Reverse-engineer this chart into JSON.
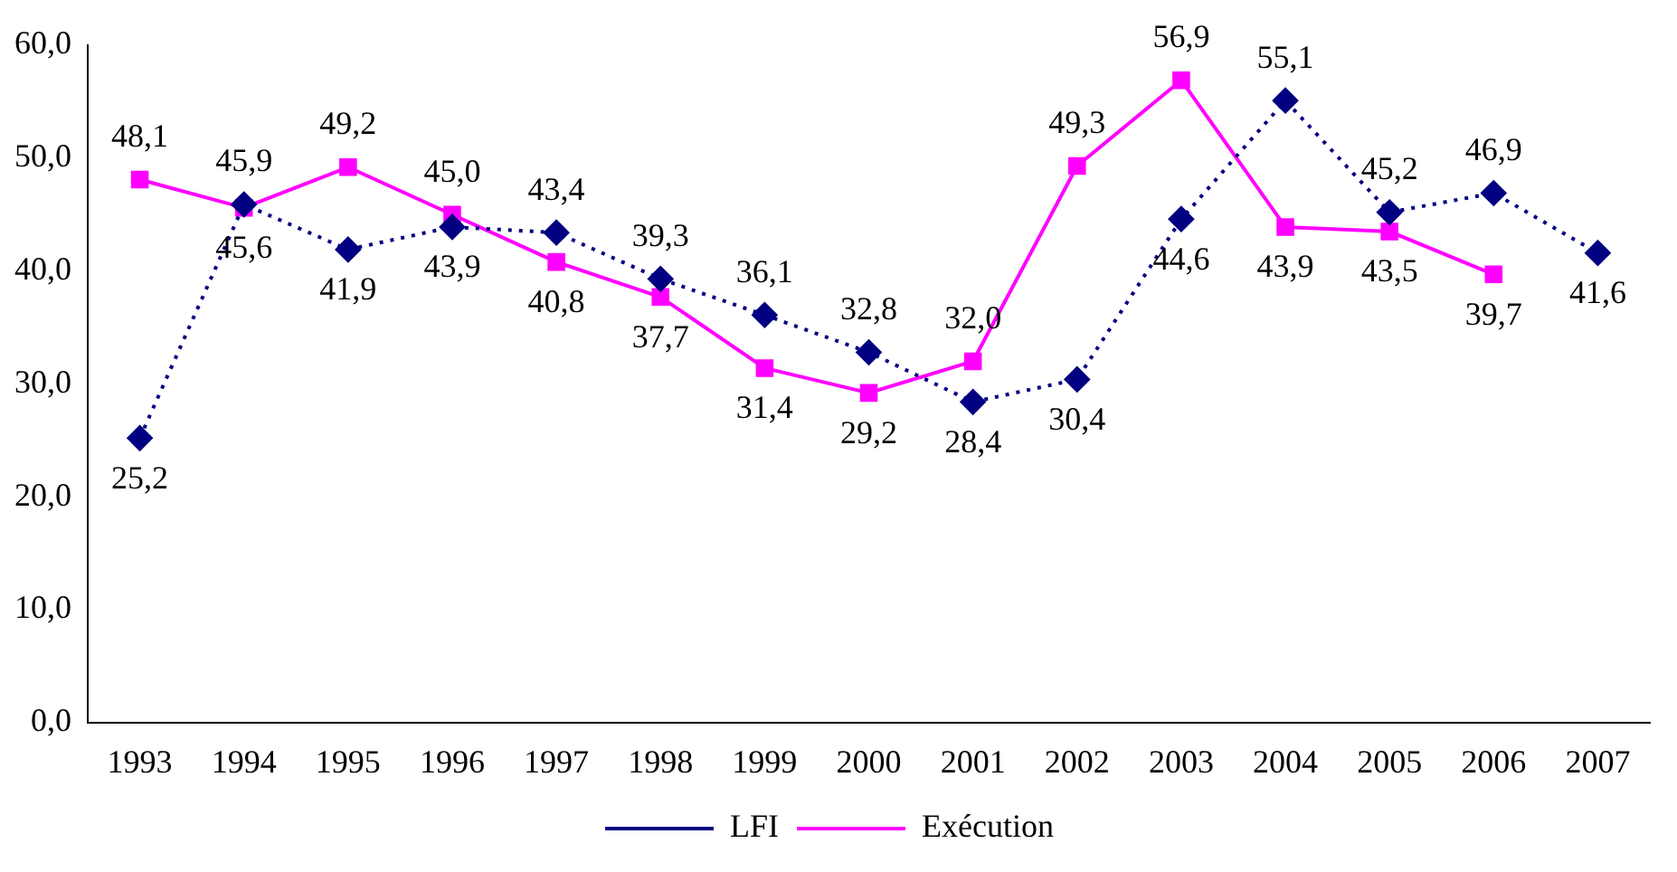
{
  "chart_data": {
    "type": "line",
    "categories": [
      "1993",
      "1994",
      "1995",
      "1996",
      "1997",
      "1998",
      "1999",
      "2000",
      "2001",
      "2002",
      "2003",
      "2004",
      "2005",
      "2006",
      "2007"
    ],
    "ylim": [
      0,
      60
    ],
    "yticks": [
      {
        "value": 0,
        "label": "0,0"
      },
      {
        "value": 10,
        "label": "10,0"
      },
      {
        "value": 20,
        "label": "20,0"
      },
      {
        "value": 30,
        "label": "30,0"
      },
      {
        "value": 40,
        "label": "40,0"
      },
      {
        "value": 50,
        "label": "50,0"
      },
      {
        "value": 60,
        "label": "60,0"
      }
    ],
    "grid": false,
    "legend": "bottom",
    "series": [
      {
        "name": "LFI",
        "color": "#000080",
        "marker": "diamond",
        "line_style": "dotted",
        "values": [
          25.2,
          45.9,
          41.9,
          43.9,
          43.4,
          39.3,
          36.1,
          32.8,
          28.4,
          30.4,
          44.6,
          55.1,
          45.2,
          46.9,
          41.6
        ],
        "value_labels": [
          "25,2",
          "45,9",
          "41,9",
          "43,9",
          "43,4",
          "39,3",
          "36,1",
          "32,8",
          "28,4",
          "30,4",
          "44,6",
          "55,1",
          "45,2",
          "46,9",
          "41,6"
        ]
      },
      {
        "name": "Exécution",
        "color": "#ff00ff",
        "marker": "square",
        "line_style": "solid",
        "values": [
          48.1,
          45.6,
          49.2,
          45.0,
          40.8,
          37.7,
          31.4,
          29.2,
          32.0,
          49.3,
          56.9,
          43.9,
          43.5,
          39.7,
          null
        ],
        "value_labels": [
          "48,1",
          "45,6",
          "49,2",
          "45,0",
          "40,8",
          "37,7",
          "31,4",
          "29,2",
          "32,0",
          "49,3",
          "56,9",
          "43,9",
          "43,5",
          "39,7",
          null
        ]
      }
    ]
  }
}
